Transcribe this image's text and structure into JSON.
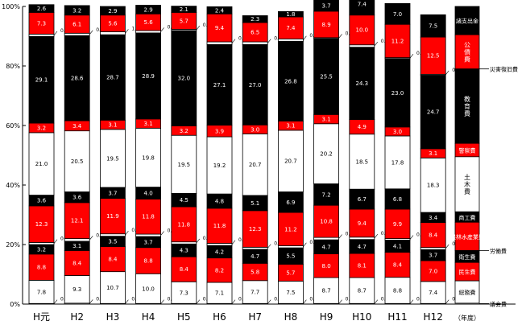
{
  "chart_data": {
    "type": "bar",
    "stacked": true,
    "y_unit": "percent",
    "ylim": [
      0,
      100
    ],
    "y_ticks": [
      "0%",
      "20%",
      "40%",
      "60%",
      "80%",
      "100%"
    ],
    "categories": [
      "H元",
      "H2",
      "H3",
      "H4",
      "H5",
      "H6",
      "H7",
      "H8",
      "H9",
      "H10",
      "H11",
      "H12"
    ],
    "x_unit_label": "（年度）",
    "series": [
      {
        "name": "議会費",
        "color": "#ffffff",
        "values": [
          0.2,
          0.3,
          0.2,
          0.2,
          0.2,
          0.2,
          0.2,
          0.2,
          0.2,
          0.2,
          0.2,
          0.2
        ]
      },
      {
        "name": "総務費",
        "color": "#ffffff",
        "values": [
          7.8,
          9.3,
          10.7,
          10.0,
          7.3,
          7.1,
          7.7,
          7.5,
          8.7,
          8.7,
          8.8,
          7.4
        ]
      },
      {
        "name": "民生費",
        "color": "#ff0000",
        "values": [
          8.8,
          8.4,
          8.4,
          8.8,
          8.4,
          8.2,
          5.8,
          5.7,
          8.0,
          8.1,
          8.4,
          7.0
        ]
      },
      {
        "name": "衛生費",
        "color": "#000000",
        "values": [
          3.2,
          3.1,
          3.5,
          3.7,
          4.3,
          4.2,
          4.7,
          5.5,
          4.7,
          4.7,
          4.1,
          3.7
        ]
      },
      {
        "name": "労働費",
        "color": "#ffffff",
        "values": [
          0.7,
          0.9,
          0.8,
          0.8,
          0.7,
          0.7,
          0.7,
          0.7,
          0.8,
          0.8,
          0.5,
          0.7
        ]
      },
      {
        "name": "農林水産業費",
        "color": "#ff0000",
        "values": [
          12.3,
          12.1,
          11.9,
          11.8,
          11.8,
          11.8,
          12.3,
          11.2,
          10.8,
          9.4,
          9.9,
          8.4
        ]
      },
      {
        "name": "商工費",
        "color": "#000000",
        "values": [
          3.6,
          3.6,
          3.7,
          4.0,
          4.5,
          4.8,
          5.1,
          6.9,
          7.2,
          6.7,
          6.8,
          3.4
        ]
      },
      {
        "name": "土木費",
        "color": "#ffffff",
        "values": [
          21.0,
          20.5,
          19.5,
          19.8,
          19.5,
          19.2,
          20.7,
          20.7,
          20.2,
          18.5,
          17.8,
          18.3
        ]
      },
      {
        "name": "警察費",
        "color": "#ff0000",
        "values": [
          3.2,
          3.4,
          3.1,
          3.1,
          3.2,
          3.9,
          3.0,
          3.1,
          3.1,
          4.9,
          3.0,
          3.1
        ]
      },
      {
        "name": "教育費",
        "color": "#000000",
        "values": [
          29.1,
          28.6,
          28.7,
          28.9,
          32.0,
          27.1,
          27.0,
          26.8,
          25.5,
          24.3,
          23.0,
          24.7
        ]
      },
      {
        "name": "災害復旧費",
        "color": "#ffffff",
        "values": [
          0.8,
          0.8,
          1.0,
          0.8,
          0.4,
          0.9,
          0.9,
          0.8,
          0.3,
          0.8,
          0.3,
          0.3
        ]
      },
      {
        "name": "公債費",
        "color": "#ff0000",
        "values": [
          7.3,
          6.1,
          5.6,
          5.6,
          5.7,
          9.4,
          6.5,
          7.4,
          8.9,
          10.0,
          11.2,
          12.5
        ]
      },
      {
        "name": "諸支出金",
        "color": "#000000",
        "values": [
          2.6,
          3.2,
          2.9,
          2.9,
          2.1,
          2.4,
          2.3,
          1.8,
          3.7,
          7.4,
          7.0,
          7.5
        ]
      }
    ],
    "legend": {
      "column": [
        "諸支出金",
        "公債費",
        "教育費",
        "警察費",
        "土木費",
        "商工費",
        "農林水産業費",
        "衛生費",
        "民生費",
        "総務費"
      ],
      "callouts": [
        "災害復旧費",
        "労働費",
        "議会費"
      ]
    },
    "grid": false
  }
}
